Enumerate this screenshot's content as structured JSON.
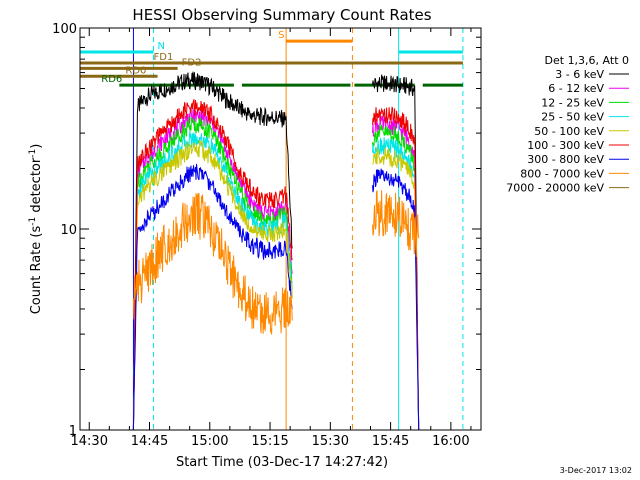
{
  "chart_data": {
    "type": "line",
    "title": "HESSI Observing Summary Count Rates",
    "xlabel": "Start Time (03-Dec-17 14:27:42)",
    "ylabel": "Count Rate (s",
    "ylabel_sup": "-1",
    "ylabel_tail": " detector",
    "ylabel_sup2": "-1",
    "ylabel_close": ")",
    "y_scale": "log",
    "ylim": [
      1,
      100
    ],
    "xlim": [
      "14:27:42",
      "16:07:30"
    ],
    "x_ticks": [
      "14:30",
      "14:45",
      "15:00",
      "15:15",
      "15:30",
      "15:45",
      "16:00"
    ],
    "y_ticks": [
      "1",
      "10",
      "100"
    ],
    "legend_header": "Det 1,3,6, Att 0",
    "legend_position": "right",
    "series": [
      {
        "name": "3 - 6 keV",
        "color": "#000000",
        "segments": [
          {
            "x": [
              "14:41:00",
              "14:42:00",
              "14:44:00",
              "14:48:00",
              "14:52:00",
              "14:55:00",
              "14:58:00",
              "15:01:00",
              "15:04:00",
              "15:07:00",
              "15:10:00",
              "15:13:00",
              "15:16:00",
              "15:19:00",
              "15:20:30"
            ],
            "y": [
              1.0,
              40,
              45,
              49,
              53,
              55,
              54,
              50,
              44,
              40,
              37,
              36,
              36,
              35,
              8
            ]
          },
          {
            "x": [
              "15:40:30",
              "15:41:30",
              "15:44:00",
              "15:47:00",
              "15:50:00",
              "15:51:00",
              "15:52:00"
            ],
            "y": [
              52,
              53,
              53,
              52,
              51,
              49,
              1.0
            ]
          }
        ]
      },
      {
        "name": "6 - 12 keV",
        "color": "#ee00ee",
        "segments": [
          {
            "x": [
              "14:41:00",
              "14:42:00",
              "14:44:00",
              "14:48:00",
              "14:52:00",
              "14:55:00",
              "14:58:00",
              "15:01:00",
              "15:04:00",
              "15:07:00",
              "15:10:00",
              "15:13:00",
              "15:16:00",
              "15:19:00",
              "15:20:30"
            ],
            "y": [
              1.0,
              19,
              22,
              27,
              32,
              36,
              36,
              33,
              25,
              18,
              14,
              12,
              12,
              13,
              6
            ]
          },
          {
            "x": [
              "15:40:30",
              "15:41:30",
              "15:44:00",
              "15:47:00",
              "15:50:00",
              "15:51:00",
              "15:52:00"
            ],
            "y": [
              30,
              33,
              33,
              32,
              27,
              23,
              1.0
            ]
          }
        ]
      },
      {
        "name": "12 - 25 keV",
        "color": "#00dd00",
        "segments": [
          {
            "x": [
              "14:41:00",
              "14:42:00",
              "14:44:00",
              "14:48:00",
              "14:52:00",
              "14:55:00",
              "14:58:00",
              "15:01:00",
              "15:04:00",
              "15:07:00",
              "15:10:00",
              "15:13:00",
              "15:16:00",
              "15:19:00",
              "15:20:30"
            ],
            "y": [
              1.0,
              17,
              20,
              24,
              29,
              33,
              33,
              29,
              22,
              16,
              12.5,
              11,
              11,
              12,
              5.5
            ]
          },
          {
            "x": [
              "15:40:30",
              "15:41:30",
              "15:44:00",
              "15:47:00",
              "15:50:00",
              "15:51:00",
              "15:52:00"
            ],
            "y": [
              27,
              30,
              30,
              29,
              24,
              20,
              1.0
            ]
          }
        ]
      },
      {
        "name": "25 - 50 keV",
        "color": "#00e5e5",
        "segments": [
          {
            "x": [
              "14:41:00",
              "14:42:00",
              "14:44:00",
              "14:48:00",
              "14:52:00",
              "14:55:00",
              "14:58:00",
              "15:01:00",
              "15:04:00",
              "15:07:00",
              "15:10:00",
              "15:13:00",
              "15:16:00",
              "15:19:00",
              "15:20:30"
            ],
            "y": [
              1.0,
              15,
              18,
              21,
              25,
              28,
              28,
              25,
              19,
              14,
              11.5,
              10,
              10,
              11,
              5
            ]
          },
          {
            "x": [
              "15:40:30",
              "15:41:30",
              "15:44:00",
              "15:47:00",
              "15:50:00",
              "15:51:00",
              "15:52:00"
            ],
            "y": [
              24,
              26,
              26,
              25,
              21,
              18,
              1.0
            ]
          }
        ]
      },
      {
        "name": "50 - 100 keV",
        "color": "#c8c800",
        "segments": [
          {
            "x": [
              "14:41:00",
              "14:42:00",
              "14:44:00",
              "14:48:00",
              "14:52:00",
              "14:55:00",
              "14:58:00",
              "15:01:00",
              "15:04:00",
              "15:07:00",
              "15:10:00",
              "15:13:00",
              "15:16:00",
              "15:19:00",
              "15:20:30"
            ],
            "y": [
              1.0,
              13,
              16,
              19,
              22,
              25,
              25,
              22,
              17,
              13,
              10.5,
              9.5,
              9.5,
              10,
              4.5
            ]
          },
          {
            "x": [
              "15:40:30",
              "15:41:30",
              "15:44:00",
              "15:47:00",
              "15:50:00",
              "15:51:00",
              "15:52:00"
            ],
            "y": [
              21,
              23,
              23,
              22,
              19,
              16,
              1.0
            ]
          }
        ]
      },
      {
        "name": "100 - 300 keV",
        "color": "#ee0000",
        "segments": [
          {
            "x": [
              "14:41:00",
              "14:42:00",
              "14:44:00",
              "14:48:00",
              "14:52:00",
              "14:55:00",
              "14:58:00",
              "15:01:00",
              "15:04:00",
              "15:07:00",
              "15:10:00",
              "15:13:00",
              "15:16:00",
              "15:19:00",
              "15:20:30"
            ],
            "y": [
              1.0,
              21,
              24,
              30,
              36,
              40,
              40,
              36,
              28,
              20,
              16,
              14,
              14,
              15,
              7
            ]
          },
          {
            "x": [
              "15:40:30",
              "15:41:30",
              "15:44:00",
              "15:47:00",
              "15:50:00",
              "15:51:00",
              "15:52:00"
            ],
            "y": [
              33,
              37,
              37,
              36,
              31,
              26,
              1.0
            ]
          }
        ]
      },
      {
        "name": "300 - 800 keV",
        "color": "#0000ee",
        "segments": [
          {
            "x": [
              "14:41:00",
              "14:42:00",
              "14:44:00",
              "14:48:00",
              "14:52:00",
              "14:55:00",
              "14:58:00",
              "15:01:00",
              "15:04:00",
              "15:07:00",
              "15:10:00",
              "15:13:00",
              "15:16:00",
              "15:19:00",
              "15:20:30"
            ],
            "y": [
              1.0,
              9.5,
              11,
              13.5,
              16.5,
              19,
              19,
              16,
              12.5,
              10,
              8.5,
              7.8,
              7.8,
              8.2,
              4
            ]
          },
          {
            "x": [
              "15:40:30",
              "15:41:30",
              "15:44:00",
              "15:47:00",
              "15:50:00",
              "15:51:00",
              "15:52:00"
            ],
            "y": [
              16.5,
              18,
              18,
              17,
              14.5,
              12,
              1.0
            ]
          }
        ]
      },
      {
        "name": "800 - 7000 keV",
        "color": "#ff8800",
        "segments": [
          {
            "x": [
              "14:41:00",
              "14:42:00",
              "14:44:00",
              "14:48:00",
              "14:52:00",
              "14:55:00",
              "14:58:00",
              "15:01:00",
              "15:04:00",
              "15:07:00",
              "15:10:00",
              "15:13:00",
              "15:16:00",
              "15:19:00",
              "15:20:30"
            ],
            "y": [
              4.5,
              5.2,
              6.0,
              7.8,
              9.8,
              11.5,
              11.5,
              9.5,
              7.0,
              5.2,
              4.2,
              3.8,
              3.8,
              4.0,
              3.5
            ]
          },
          {
            "x": [
              "15:40:30",
              "15:41:30",
              "15:44:00",
              "15:47:00",
              "15:50:00",
              "15:51:00",
              "15:52:00"
            ],
            "y": [
              10.5,
              12,
              12,
              11.5,
              10,
              9,
              9
            ]
          }
        ]
      },
      {
        "name": "7000 - 20000 keV",
        "color": "#8b6914",
        "segments": []
      }
    ],
    "vertical_lines": [
      {
        "x": "14:27:42",
        "color": "#00e5e5",
        "style": "solid"
      },
      {
        "x": "14:46:00",
        "color": "#00e5e5",
        "style": "dashed"
      },
      {
        "x": "15:19:00",
        "color": "#ff8800",
        "style": "solid"
      },
      {
        "x": "15:35:30",
        "color": "#ff8800",
        "style": "dashed"
      },
      {
        "x": "15:47:00",
        "color": "#00e5e5",
        "style": "solid"
      },
      {
        "x": "16:03:00",
        "color": "#00e5e5",
        "style": "dashed"
      },
      {
        "x": "14:41:00",
        "color": "#0000ee",
        "style": "solid"
      }
    ],
    "flag_bars": [
      {
        "label": "N",
        "color": "#00e5e5",
        "y": 76,
        "label_x": "14:47:00",
        "ranges": [
          [
            "14:27:42",
            "14:46:00"
          ],
          [
            "15:47:00",
            "16:03:00"
          ]
        ]
      },
      {
        "label": "S",
        "color": "#ff8800",
        "y": 86,
        "label_x": "15:17:00",
        "ranges": [
          [
            "15:19:00",
            "15:35:30"
          ]
        ]
      },
      {
        "label": "FD1",
        "color": "#8b6914",
        "y": 67,
        "label_x": "14:46:00",
        "ranges": [
          [
            "14:27:42",
            "16:03:00"
          ]
        ]
      },
      {
        "label": "FD2",
        "color": "#8b6914",
        "y": 63,
        "label_x": "14:53:00",
        "ranges": [
          [
            "14:27:42",
            "14:52:00"
          ]
        ]
      },
      {
        "label": "RD0",
        "color": "#8b6914",
        "y": 57.5,
        "label_x": "14:39:00",
        "ranges": [
          [
            "14:27:42",
            "14:47:00"
          ]
        ]
      },
      {
        "label": "RD6",
        "color": "#006400",
        "y": 52,
        "label_x": "14:33:00",
        "ranges": [
          [
            "14:37:30",
            "15:06:00"
          ],
          [
            "15:08:00",
            "15:35:00"
          ],
          [
            "15:36:00",
            "15:51:00"
          ],
          [
            "15:53:00",
            "16:03:00"
          ]
        ]
      }
    ]
  },
  "footer": {
    "timestamp": "3-Dec-2017 13:02"
  }
}
